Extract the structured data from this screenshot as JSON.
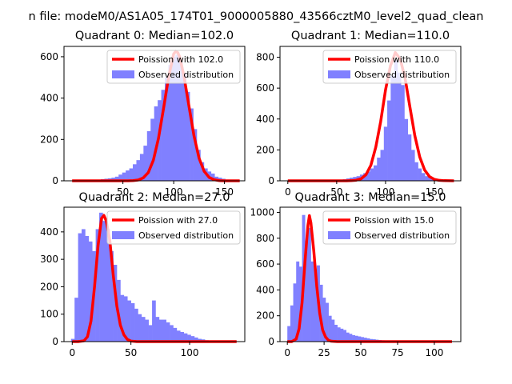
{
  "figure": {
    "title": "n file: modeM0/AS1A05_174T01_9000005880_43566cztM0_level2_quad_clean"
  },
  "colors": {
    "bar": "#8080ff",
    "line": "#ff0000",
    "axis": "#000000"
  },
  "chart_data": [
    {
      "type": "bar",
      "title": "Quadrant 0: Median=102.0",
      "xlim": [
        -8,
        170
      ],
      "ylim": [
        0,
        650
      ],
      "xticks": [
        50,
        100,
        150
      ],
      "yticks": [
        0,
        200,
        400,
        600
      ],
      "bin_width": 3.5,
      "hist_x": [
        2,
        5.5,
        9,
        12.5,
        16,
        19.5,
        23,
        26.5,
        30,
        33.5,
        37,
        40.5,
        44,
        47.5,
        51,
        54.5,
        58,
        61.5,
        65,
        68.5,
        72,
        75.5,
        79,
        82.5,
        86,
        89.5,
        93,
        96.5,
        100,
        103.5,
        107,
        110.5,
        114,
        117.5,
        121,
        124.5,
        128,
        131.5,
        135,
        138.5,
        142,
        145.5,
        149,
        152.5,
        156,
        159.5,
        163
      ],
      "hist_y": [
        0,
        0,
        0,
        0,
        1,
        2,
        3,
        5,
        8,
        10,
        12,
        15,
        20,
        30,
        40,
        50,
        60,
        80,
        100,
        130,
        170,
        240,
        300,
        360,
        390,
        440,
        500,
        560,
        600,
        610,
        570,
        520,
        430,
        350,
        250,
        150,
        90,
        60,
        45,
        35,
        20,
        15,
        10,
        6,
        3,
        2,
        1
      ],
      "curve_x": [
        0,
        10,
        20,
        30,
        40,
        50,
        55,
        60,
        65,
        70,
        75,
        80,
        85,
        90,
        95,
        100,
        102,
        104,
        106,
        110,
        115,
        120,
        125,
        130,
        135,
        140,
        145,
        150,
        160,
        165
      ],
      "curve_y": [
        0,
        0,
        0,
        0,
        0,
        0,
        0,
        1,
        4,
        14,
        40,
        100,
        205,
        350,
        502,
        614,
        626,
        620,
        598,
        509,
        362,
        217,
        109,
        46,
        16,
        5,
        1,
        0,
        0,
        0
      ],
      "legend": {
        "line_label": "Poission with 102.0",
        "bar_label": "Observed distribution",
        "placement": "upper right"
      }
    },
    {
      "type": "bar",
      "title": "Quadrant 1: Median=110.0",
      "xlim": [
        -8,
        177
      ],
      "ylim": [
        0,
        870
      ],
      "xticks": [
        0,
        50,
        100,
        150
      ],
      "yticks": [
        0,
        200,
        400,
        600,
        800
      ],
      "bin_width": 3.5,
      "hist_x": [
        2,
        5.5,
        9,
        12.5,
        16,
        19.5,
        23,
        26.5,
        30,
        33.5,
        37,
        40.5,
        44,
        47.5,
        51,
        54.5,
        58,
        61.5,
        65,
        68.5,
        72,
        75.5,
        79,
        82.5,
        86,
        89.5,
        93,
        96.5,
        100,
        103.5,
        107,
        110.5,
        114,
        117.5,
        121,
        124.5,
        128,
        131.5,
        135,
        138.5,
        142,
        145.5,
        149,
        152.5,
        156,
        159.5,
        163,
        166.5
      ],
      "hist_y": [
        0,
        0,
        0,
        0,
        0,
        0,
        0,
        0,
        0,
        0,
        0,
        0,
        0,
        0,
        0,
        5,
        10,
        15,
        20,
        25,
        30,
        40,
        50,
        60,
        80,
        100,
        150,
        200,
        350,
        520,
        680,
        780,
        700,
        620,
        400,
        300,
        200,
        120,
        80,
        50,
        30,
        20,
        10,
        5,
        3,
        2,
        1,
        0
      ],
      "curve_x": [
        0,
        10,
        20,
        30,
        40,
        50,
        60,
        65,
        70,
        75,
        80,
        85,
        90,
        95,
        100,
        105,
        110,
        115,
        120,
        125,
        130,
        135,
        140,
        145,
        150,
        155,
        160,
        170
      ],
      "curve_y": [
        0,
        0,
        0,
        0,
        0,
        0,
        0,
        1,
        4,
        13,
        40,
        101,
        218,
        383,
        589,
        744,
        830,
        789,
        664,
        475,
        291,
        154,
        70,
        27,
        9,
        3,
        1,
        0
      ],
      "legend": {
        "line_label": "Poission with 110.0",
        "bar_label": "Observed distribution",
        "placement": "upper right"
      }
    },
    {
      "type": "bar",
      "title": "Quadrant 2: Median=27.0",
      "xlim": [
        -7,
        147
      ],
      "ylim": [
        0,
        490
      ],
      "xticks": [
        0,
        50,
        100
      ],
      "yticks": [
        0,
        100,
        200,
        300,
        400
      ],
      "bin_width": 3,
      "hist_x": [
        0.5,
        3.5,
        6.5,
        9.5,
        12.5,
        15.5,
        18.5,
        21.5,
        24.5,
        27.5,
        30.5,
        33.5,
        36.5,
        39.5,
        42.5,
        45.5,
        48.5,
        51.5,
        54.5,
        57.5,
        60.5,
        63.5,
        66.5,
        69.5,
        72.5,
        75.5,
        78.5,
        81.5,
        84.5,
        87.5,
        90.5,
        93.5,
        96.5,
        99.5,
        102.5,
        105.5,
        108.5,
        111.5,
        114.5,
        117.5,
        120.5
      ],
      "hist_y": [
        10,
        160,
        395,
        410,
        385,
        365,
        330,
        410,
        470,
        440,
        410,
        330,
        280,
        225,
        170,
        165,
        150,
        140,
        120,
        100,
        90,
        80,
        60,
        150,
        90,
        80,
        80,
        70,
        60,
        50,
        40,
        35,
        30,
        25,
        20,
        15,
        10,
        8,
        5,
        3,
        1
      ],
      "curve_x": [
        0,
        5,
        10,
        13,
        16,
        19,
        22,
        25,
        27,
        29,
        32,
        35,
        38,
        41,
        44,
        47,
        50,
        55,
        60,
        70,
        80,
        100,
        140
      ],
      "curve_y": [
        0,
        0,
        3,
        18,
        75,
        200,
        350,
        450,
        460,
        440,
        370,
        240,
        130,
        60,
        25,
        8,
        2,
        0,
        0,
        0,
        0,
        0,
        0
      ],
      "legend": {
        "line_label": "Poission with 27.0",
        "bar_label": "Observed distribution",
        "placement": "upper right"
      }
    },
    {
      "type": "bar",
      "title": "Quadrant 3: Median=15.0",
      "xlim": [
        -5,
        118
      ],
      "ylim": [
        0,
        1040
      ],
      "xticks": [
        0,
        25,
        50,
        75,
        100
      ],
      "yticks": [
        0,
        200,
        400,
        600,
        800,
        1000
      ],
      "bin_width": 2,
      "hist_x": [
        1,
        3,
        5,
        7,
        9,
        11,
        13,
        15,
        17,
        19,
        21,
        23,
        25,
        27,
        29,
        31,
        33,
        35,
        37,
        39,
        41,
        43,
        45,
        47,
        49,
        51,
        53,
        55,
        57,
        59,
        61,
        63,
        65,
        67,
        69,
        71,
        73,
        75,
        77,
        79,
        81,
        83,
        85,
        87,
        89,
        91,
        93,
        95
      ],
      "hist_y": [
        120,
        280,
        450,
        620,
        580,
        980,
        780,
        880,
        620,
        560,
        590,
        440,
        340,
        300,
        200,
        170,
        130,
        110,
        100,
        90,
        70,
        60,
        50,
        45,
        40,
        35,
        30,
        25,
        20,
        18,
        15,
        12,
        10,
        8,
        7,
        6,
        5,
        4,
        3,
        3,
        2,
        2,
        1,
        1,
        1,
        0,
        0,
        0
      ],
      "curve_x": [
        0,
        3,
        6,
        8,
        10,
        12,
        14,
        15,
        16,
        18,
        20,
        22,
        24,
        26,
        28,
        30,
        34,
        40,
        60,
        112
      ],
      "curve_y": [
        0,
        0,
        20,
        100,
        300,
        620,
        900,
        975,
        920,
        700,
        430,
        220,
        90,
        35,
        10,
        3,
        0,
        0,
        0,
        0
      ],
      "legend": {
        "line_label": "Poission with 15.0",
        "bar_label": "Observed distribution",
        "placement": "upper right"
      }
    }
  ]
}
